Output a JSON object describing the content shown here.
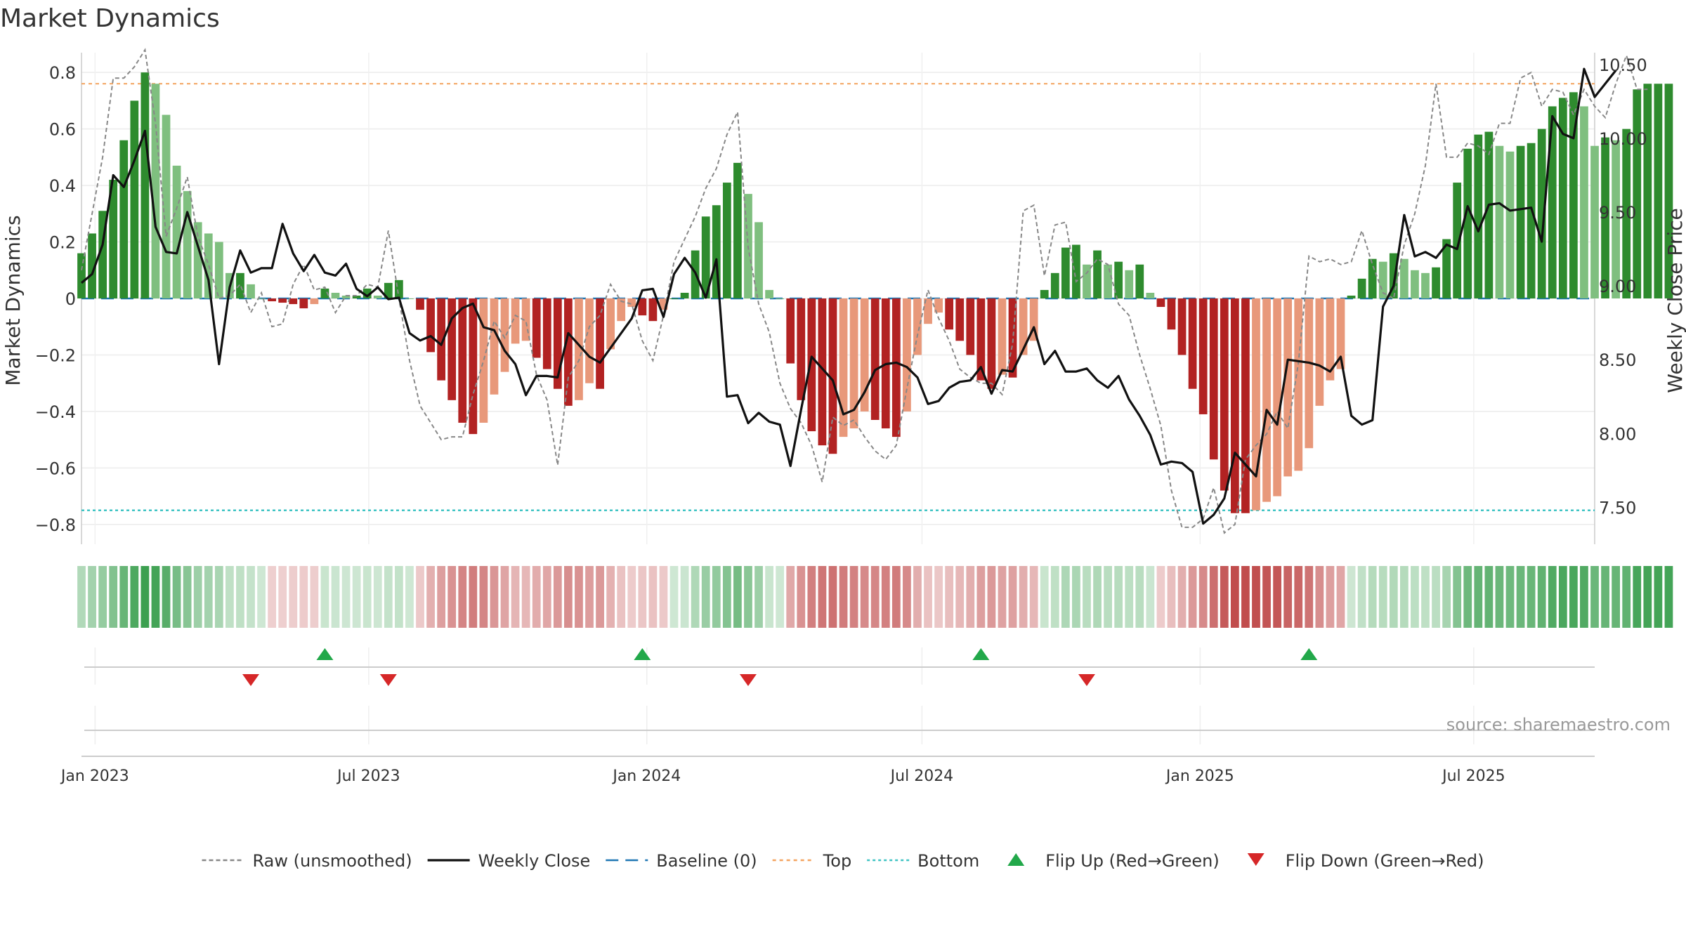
{
  "chart_data": {
    "type": "bar",
    "title": "Market Dynamics",
    "ylabel_left": "Market Dynamics",
    "ylabel_right": "Weekly Close Price",
    "source": "source: sharemaestro.com",
    "ylim_left": [
      -0.87,
      0.87
    ],
    "ylim_right": [
      7.25,
      10.58
    ],
    "yticks_left": [
      0.8,
      0.6,
      0.4,
      0.2,
      0,
      -0.2,
      -0.4,
      -0.6,
      -0.8
    ],
    "yticks_left_labels": [
      "0.8",
      "0.6",
      "0.4",
      "0.2",
      "0",
      "−0.2",
      "−0.4",
      "−0.6",
      "−0.8"
    ],
    "yticks_right": [
      10.5,
      10.0,
      9.5,
      9.0,
      8.5,
      8.0,
      7.5
    ],
    "yticks_right_labels": [
      "10.50",
      "10.00",
      "9.50",
      "9.00",
      "8.50",
      "8.00",
      "7.50"
    ],
    "x_start": "2022-12-23",
    "x_end": "2025-09-19",
    "x_ticks": [
      {
        "date": "2023-01-01",
        "label": "Jan 2023"
      },
      {
        "date": "2023-07-01",
        "label": "Jul 2023"
      },
      {
        "date": "2024-01-01",
        "label": "Jan 2024"
      },
      {
        "date": "2024-07-01",
        "label": "Jul 2024"
      },
      {
        "date": "2025-01-01",
        "label": "Jan 2025"
      },
      {
        "date": "2025-07-01",
        "label": "Jul 2025"
      }
    ],
    "first_week": "2022-12-23",
    "week_interval_days": 7,
    "top_level": 0.76,
    "bottom_level": -0.75,
    "baseline": 0,
    "grid": true,
    "legend_position": "bottom",
    "colors": {
      "strong_green": "#2e8b2e",
      "light_green": "#7fbf7f",
      "strong_red": "#b22222",
      "light_red": "#e8987a",
      "raw": "#888888",
      "close": "#111111",
      "baseline": "#1f77b4",
      "top": "#f4a460",
      "bottom": "#40c4c4",
      "flip_up": "#22a84a",
      "flip_down": "#d62728"
    },
    "series": [
      {
        "name": "Market Dynamics bars",
        "values": [
          0.16,
          0.23,
          0.31,
          0.42,
          0.56,
          0.7,
          0.8,
          0.76,
          0.65,
          0.47,
          0.38,
          0.27,
          0.23,
          0.2,
          0.09,
          0.09,
          0.05,
          0,
          -0.01,
          -0.015,
          -0.02,
          -0.035,
          -0.02,
          0.035,
          0.02,
          0.01,
          0.01,
          0.035,
          0.01,
          0.055,
          0.065,
          0,
          -0.04,
          -0.19,
          -0.29,
          -0.36,
          -0.44,
          -0.48,
          -0.44,
          -0.34,
          -0.26,
          -0.16,
          -0.15,
          -0.21,
          -0.25,
          -0.32,
          -0.38,
          -0.36,
          -0.3,
          -0.32,
          -0.18,
          -0.08,
          -0.03,
          -0.06,
          -0.08,
          -0.04,
          0,
          0.02,
          0.17,
          0.29,
          0.33,
          0.41,
          0.48,
          0.37,
          0.27,
          0.03,
          0,
          -0.23,
          -0.36,
          -0.47,
          -0.52,
          -0.55,
          -0.49,
          -0.46,
          -0.4,
          -0.43,
          -0.46,
          -0.49,
          -0.4,
          -0.2,
          -0.09,
          -0.05,
          -0.11,
          -0.15,
          -0.2,
          -0.29,
          -0.32,
          -0.27,
          -0.28,
          -0.2,
          -0.15,
          0.03,
          0.09,
          0.18,
          0.19,
          0.12,
          0.17,
          0.12,
          0.13,
          0.1,
          0.12,
          0.02,
          -0.03,
          -0.11,
          -0.2,
          -0.32,
          -0.41,
          -0.57,
          -0.68,
          -0.76,
          -0.76,
          -0.75,
          -0.72,
          -0.7,
          -0.63,
          -0.61,
          -0.53,
          -0.38,
          -0.29,
          -0.25,
          0.01,
          0.07,
          0.14,
          0.13,
          0.16,
          0.14,
          0.1,
          0.09,
          0.11,
          0.21,
          0.41,
          0.53,
          0.58,
          0.59,
          0.54,
          0.52,
          0.54,
          0.55,
          0.6,
          0.68,
          0.71,
          0.73,
          0.68,
          0.54,
          0.57,
          0.56,
          0.6,
          0.74,
          0.76,
          0.76,
          0.76
        ]
      },
      {
        "name": "Raw (unsmoothed)",
        "values": [
          0.1,
          0.3,
          0.5,
          0.78,
          0.78,
          0.82,
          0.88,
          0.62,
          0.22,
          0.32,
          0.43,
          0.22,
          0.12,
          0.0,
          0.01,
          0.05,
          -0.05,
          0.02,
          -0.1,
          -0.09,
          0.05,
          0.12,
          0.03,
          0.04,
          -0.05,
          0.01,
          0.01,
          0.05,
          0.04,
          0.24,
          0.0,
          -0.22,
          -0.38,
          -0.44,
          -0.5,
          -0.49,
          -0.49,
          -0.34,
          -0.22,
          -0.08,
          -0.14,
          -0.06,
          -0.08,
          -0.27,
          -0.36,
          -0.59,
          -0.28,
          -0.22,
          -0.1,
          -0.06,
          0.05,
          -0.01,
          -0.02,
          -0.15,
          -0.22,
          -0.06,
          0.13,
          0.21,
          0.29,
          0.39,
          0.46,
          0.58,
          0.66,
          0.18,
          -0.02,
          -0.12,
          -0.3,
          -0.39,
          -0.44,
          -0.52,
          -0.65,
          -0.42,
          -0.45,
          -0.43,
          -0.49,
          -0.54,
          -0.57,
          -0.52,
          -0.32,
          -0.13,
          0.03,
          -0.07,
          -0.15,
          -0.25,
          -0.28,
          -0.3,
          -0.3,
          -0.34,
          -0.16,
          0.31,
          0.33,
          0.08,
          0.26,
          0.27,
          0.06,
          0.09,
          0.14,
          0.12,
          -0.02,
          -0.06,
          -0.2,
          -0.32,
          -0.45,
          -0.68,
          -0.81,
          -0.81,
          -0.78,
          -0.67,
          -0.83,
          -0.8,
          -0.57,
          -0.52,
          -0.48,
          -0.4,
          -0.46,
          -0.23,
          0.15,
          0.13,
          0.14,
          0.12,
          0.13,
          0.24,
          0.12,
          0.02,
          0.0,
          0.19,
          0.3,
          0.47,
          0.76,
          0.5,
          0.5,
          0.55,
          0.54,
          0.51,
          0.62,
          0.62,
          0.78,
          0.8,
          0.68,
          0.74,
          0.73,
          0.65,
          0.74,
          0.68,
          0.64,
          0.76,
          0.86,
          0.74,
          0.74
        ]
      },
      {
        "name": "Weekly Close",
        "values": [
          9.02,
          9.08,
          9.28,
          9.75,
          9.67,
          9.85,
          10.05,
          9.4,
          9.23,
          9.22,
          9.5,
          9.27,
          9.04,
          8.47,
          8.99,
          9.24,
          9.09,
          9.12,
          9.12,
          9.42,
          9.22,
          9.1,
          9.21,
          9.09,
          9.07,
          9.15,
          8.98,
          8.93,
          8.99,
          8.91,
          8.92,
          8.68,
          8.63,
          8.66,
          8.6,
          8.78,
          8.85,
          8.88,
          8.72,
          8.7,
          8.56,
          8.47,
          8.26,
          8.39,
          8.39,
          8.38,
          8.68,
          8.6,
          8.52,
          8.48,
          8.58,
          8.68,
          8.78,
          8.97,
          8.98,
          8.79,
          9.08,
          9.19,
          9.09,
          8.92,
          9.18,
          8.25,
          8.26,
          8.07,
          8.14,
          8.08,
          8.06,
          7.78,
          8.16,
          8.52,
          8.44,
          8.36,
          8.13,
          8.16,
          8.28,
          8.43,
          8.47,
          8.48,
          8.45,
          8.38,
          8.2,
          8.22,
          8.31,
          8.35,
          8.36,
          8.45,
          8.27,
          8.43,
          8.42,
          8.57,
          8.72,
          8.47,
          8.56,
          8.42,
          8.42,
          8.44,
          8.36,
          8.31,
          8.39,
          8.23,
          8.12,
          7.99,
          7.79,
          7.81,
          7.8,
          7.74,
          7.39,
          7.45,
          7.56,
          7.87,
          7.79,
          7.71,
          8.16,
          8.06,
          8.5,
          8.49,
          8.48,
          8.46,
          8.42,
          8.52,
          8.12,
          8.06,
          8.09,
          8.86,
          9.0,
          9.48,
          9.2,
          9.23,
          9.19,
          9.28,
          9.25,
          9.54,
          9.37,
          9.55,
          9.56,
          9.51,
          9.52,
          9.53,
          9.3,
          10.15,
          10.03,
          10.0,
          10.47,
          10.28,
          10.37,
          10.46
        ]
      }
    ],
    "reference_lines": [
      "Baseline (0)",
      "Top",
      "Bottom"
    ],
    "flip_up_dates": [
      "2023-06-02",
      "2023-12-29",
      "2024-08-09",
      "2025-03-14"
    ],
    "flip_down_dates": [
      "2023-04-14",
      "2023-07-14",
      "2024-03-08",
      "2024-10-18"
    ],
    "legend": [
      {
        "key": "raw",
        "label": "Raw (unsmoothed)",
        "style": "dashed-line"
      },
      {
        "key": "close",
        "label": "Weekly Close",
        "style": "solid-line"
      },
      {
        "key": "baseline",
        "label": "Baseline (0)",
        "style": "long-dash-line"
      },
      {
        "key": "top",
        "label": "Top",
        "style": "short-dash-line"
      },
      {
        "key": "bottom",
        "label": "Bottom",
        "style": "dotted-line"
      },
      {
        "key": "flip_up",
        "label": "Flip Up (Red→Green)",
        "style": "triangle-up"
      },
      {
        "key": "flip_down",
        "label": "Flip Down (Green→Red)",
        "style": "triangle-down"
      }
    ]
  }
}
